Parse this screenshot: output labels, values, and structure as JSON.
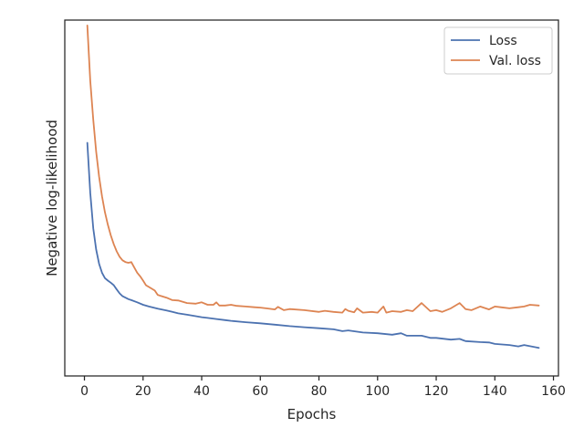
{
  "chart_data": {
    "type": "line",
    "title": "",
    "xlabel": "Epochs",
    "ylabel": "Negative log-likelihood",
    "xlim": [
      -6.7,
      161.7
    ],
    "ylim": [
      0,
      1
    ],
    "xticks": [
      0,
      20,
      40,
      60,
      80,
      100,
      120,
      140,
      160
    ],
    "y_tick_labels_shown": false,
    "grid": false,
    "legend": "top-right",
    "series": [
      {
        "name": "Loss",
        "color": "#4c72b0",
        "x": [
          1,
          2,
          3,
          4,
          5,
          6,
          7,
          8,
          9,
          10,
          11,
          12,
          13,
          14,
          15,
          16,
          18,
          20,
          22,
          25,
          28,
          30,
          32,
          35,
          38,
          40,
          42,
          45,
          48,
          50,
          55,
          60,
          65,
          70,
          75,
          80,
          85,
          88,
          90,
          95,
          100,
          105,
          108,
          110,
          115,
          118,
          120,
          125,
          128,
          130,
          135,
          138,
          140,
          145,
          148,
          150,
          155
        ],
        "y": [
          0.655,
          0.515,
          0.415,
          0.355,
          0.315,
          0.29,
          0.275,
          0.268,
          0.262,
          0.255,
          0.243,
          0.232,
          0.224,
          0.22,
          0.216,
          0.213,
          0.207,
          0.2,
          0.195,
          0.189,
          0.184,
          0.18,
          0.176,
          0.172,
          0.168,
          0.165,
          0.163,
          0.16,
          0.157,
          0.155,
          0.151,
          0.148,
          0.144,
          0.14,
          0.137,
          0.134,
          0.131,
          0.126,
          0.128,
          0.122,
          0.12,
          0.116,
          0.12,
          0.113,
          0.113,
          0.107,
          0.107,
          0.102,
          0.104,
          0.098,
          0.095,
          0.094,
          0.09,
          0.087,
          0.083,
          0.087,
          0.079
        ]
      },
      {
        "name": "Val. loss",
        "color": "#dd8452",
        "x": [
          1,
          2,
          3,
          4,
          5,
          6,
          7,
          8,
          9,
          10,
          11,
          12,
          13,
          14,
          15,
          16,
          17,
          18,
          19,
          20,
          21,
          22,
          24,
          25,
          26,
          28,
          30,
          32,
          35,
          38,
          40,
          42,
          44,
          45,
          46,
          48,
          50,
          52,
          55,
          58,
          60,
          62,
          65,
          66,
          68,
          70,
          75,
          80,
          82,
          85,
          88,
          89,
          90,
          92,
          93,
          95,
          98,
          100,
          102,
          103,
          105,
          108,
          110,
          112,
          115,
          118,
          120,
          122,
          125,
          128,
          130,
          132,
          135,
          138,
          140,
          142,
          145,
          148,
          150,
          152,
          155
        ],
        "y": [
          0.985,
          0.83,
          0.72,
          0.63,
          0.56,
          0.505,
          0.46,
          0.425,
          0.395,
          0.37,
          0.35,
          0.335,
          0.325,
          0.32,
          0.318,
          0.32,
          0.305,
          0.29,
          0.28,
          0.268,
          0.255,
          0.25,
          0.24,
          0.228,
          0.225,
          0.22,
          0.213,
          0.212,
          0.205,
          0.203,
          0.207,
          0.2,
          0.2,
          0.207,
          0.198,
          0.198,
          0.2,
          0.197,
          0.195,
          0.193,
          0.192,
          0.19,
          0.187,
          0.194,
          0.185,
          0.188,
          0.185,
          0.18,
          0.183,
          0.18,
          0.178,
          0.188,
          0.183,
          0.179,
          0.19,
          0.178,
          0.18,
          0.178,
          0.195,
          0.178,
          0.182,
          0.18,
          0.185,
          0.182,
          0.205,
          0.182,
          0.185,
          0.18,
          0.19,
          0.205,
          0.188,
          0.185,
          0.195,
          0.187,
          0.195,
          0.193,
          0.19,
          0.193,
          0.195,
          0.2,
          0.198
        ]
      }
    ]
  }
}
